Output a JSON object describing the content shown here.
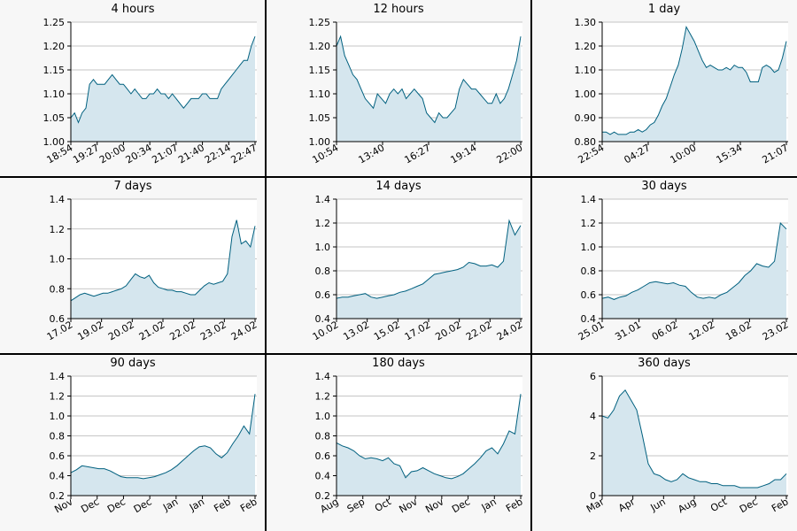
{
  "colors": {
    "line": "#00607f",
    "fill": "#d5e6ee",
    "grid": "#b3b3b3",
    "background": "#f7f7f7",
    "plot_bg": "#ffffff"
  },
  "chart_data": [
    {
      "type": "area",
      "title": "4 hours",
      "ylim": [
        1.0,
        1.25
      ],
      "yticks": [
        "1.00",
        "1.05",
        "1.10",
        "1.15",
        "1.20",
        "1.25"
      ],
      "xticks": [
        "18:54",
        "19:27",
        "20:00",
        "20:34",
        "21:07",
        "21:40",
        "22:14",
        "22:47"
      ],
      "y": [
        1.05,
        1.06,
        1.04,
        1.06,
        1.07,
        1.12,
        1.13,
        1.12,
        1.12,
        1.12,
        1.13,
        1.14,
        1.13,
        1.12,
        1.12,
        1.11,
        1.1,
        1.11,
        1.1,
        1.09,
        1.09,
        1.1,
        1.1,
        1.11,
        1.1,
        1.1,
        1.09,
        1.1,
        1.09,
        1.08,
        1.07,
        1.08,
        1.09,
        1.09,
        1.09,
        1.1,
        1.1,
        1.09,
        1.09,
        1.09,
        1.11,
        1.12,
        1.13,
        1.14,
        1.15,
        1.16,
        1.17,
        1.17,
        1.2,
        1.22
      ]
    },
    {
      "type": "area",
      "title": "12 hours",
      "ylim": [
        1.0,
        1.25
      ],
      "yticks": [
        "1.00",
        "1.05",
        "1.10",
        "1.15",
        "1.20",
        "1.25"
      ],
      "xticks": [
        "10:54",
        "13:40",
        "16:27",
        "19:14",
        "22:00"
      ],
      "y": [
        1.2,
        1.22,
        1.18,
        1.16,
        1.14,
        1.13,
        1.11,
        1.09,
        1.08,
        1.07,
        1.1,
        1.09,
        1.08,
        1.1,
        1.11,
        1.1,
        1.11,
        1.09,
        1.1,
        1.11,
        1.1,
        1.09,
        1.06,
        1.05,
        1.04,
        1.06,
        1.05,
        1.05,
        1.06,
        1.07,
        1.11,
        1.13,
        1.12,
        1.11,
        1.11,
        1.1,
        1.09,
        1.08,
        1.08,
        1.1,
        1.08,
        1.09,
        1.11,
        1.14,
        1.17,
        1.22
      ]
    },
    {
      "type": "area",
      "title": "1 day",
      "ylim": [
        0.8,
        1.3
      ],
      "yticks": [
        "0.80",
        "0.90",
        "1.00",
        "1.10",
        "1.20",
        "1.30"
      ],
      "xticks": [
        "22:54",
        "04:27",
        "10:00",
        "15:34",
        "21:07"
      ],
      "y": [
        0.84,
        0.84,
        0.83,
        0.84,
        0.83,
        0.83,
        0.83,
        0.84,
        0.84,
        0.85,
        0.84,
        0.85,
        0.87,
        0.88,
        0.91,
        0.95,
        0.98,
        1.03,
        1.08,
        1.12,
        1.19,
        1.28,
        1.25,
        1.22,
        1.18,
        1.14,
        1.11,
        1.12,
        1.11,
        1.1,
        1.1,
        1.11,
        1.1,
        1.12,
        1.11,
        1.11,
        1.09,
        1.05,
        1.05,
        1.05,
        1.11,
        1.12,
        1.11,
        1.09,
        1.1,
        1.15,
        1.22
      ]
    },
    {
      "type": "area",
      "title": "7 days",
      "ylim": [
        0.6,
        1.4
      ],
      "yticks": [
        "0.6",
        "0.8",
        "1.0",
        "1.2",
        "1.4"
      ],
      "xticks": [
        "17.02",
        "19.02",
        "20.02",
        "21.02",
        "22.02",
        "23.02",
        "24.02"
      ],
      "y": [
        0.72,
        0.74,
        0.76,
        0.77,
        0.76,
        0.75,
        0.76,
        0.77,
        0.77,
        0.78,
        0.79,
        0.8,
        0.82,
        0.86,
        0.9,
        0.88,
        0.87,
        0.89,
        0.84,
        0.81,
        0.8,
        0.79,
        0.79,
        0.78,
        0.78,
        0.77,
        0.76,
        0.76,
        0.79,
        0.82,
        0.84,
        0.83,
        0.84,
        0.85,
        0.9,
        1.15,
        1.26,
        1.1,
        1.12,
        1.08,
        1.22
      ]
    },
    {
      "type": "area",
      "title": "14 days",
      "ylim": [
        0.4,
        1.4
      ],
      "yticks": [
        "0.4",
        "0.6",
        "0.8",
        "1.0",
        "1.2",
        "1.4"
      ],
      "xticks": [
        "10.02",
        "13.02",
        "15.02",
        "17.02",
        "20.02",
        "22.02",
        "24.02"
      ],
      "y": [
        0.57,
        0.58,
        0.58,
        0.59,
        0.6,
        0.61,
        0.58,
        0.57,
        0.58,
        0.59,
        0.6,
        0.62,
        0.63,
        0.65,
        0.67,
        0.69,
        0.73,
        0.77,
        0.78,
        0.79,
        0.8,
        0.81,
        0.83,
        0.87,
        0.86,
        0.84,
        0.84,
        0.85,
        0.83,
        0.88,
        1.22,
        1.1,
        1.18
      ]
    },
    {
      "type": "area",
      "title": "30 days",
      "ylim": [
        0.4,
        1.4
      ],
      "yticks": [
        "0.4",
        "0.6",
        "0.8",
        "1.0",
        "1.2",
        "1.4"
      ],
      "xticks": [
        "25.01",
        "31.01",
        "06.02",
        "12.02",
        "18.02",
        "23.02"
      ],
      "y": [
        0.57,
        0.58,
        0.56,
        0.58,
        0.59,
        0.62,
        0.64,
        0.67,
        0.7,
        0.71,
        0.7,
        0.69,
        0.7,
        0.68,
        0.67,
        0.62,
        0.58,
        0.57,
        0.58,
        0.57,
        0.6,
        0.62,
        0.66,
        0.7,
        0.76,
        0.8,
        0.86,
        0.84,
        0.83,
        0.88,
        1.2,
        1.15
      ]
    },
    {
      "type": "area",
      "title": "90 days",
      "ylim": [
        0.2,
        1.4
      ],
      "yticks": [
        "0.2",
        "0.4",
        "0.6",
        "0.8",
        "1.0",
        "1.2",
        "1.4"
      ],
      "xticks": [
        "Nov",
        "Dec",
        "Dec",
        "Dec",
        "Jan",
        "Jan",
        "Feb",
        "Feb"
      ],
      "y": [
        0.43,
        0.46,
        0.5,
        0.49,
        0.48,
        0.47,
        0.47,
        0.45,
        0.42,
        0.39,
        0.38,
        0.38,
        0.38,
        0.37,
        0.38,
        0.39,
        0.41,
        0.43,
        0.46,
        0.5,
        0.55,
        0.6,
        0.65,
        0.69,
        0.7,
        0.68,
        0.62,
        0.58,
        0.63,
        0.72,
        0.8,
        0.9,
        0.82,
        1.22
      ]
    },
    {
      "type": "area",
      "title": "180 days",
      "ylim": [
        0.2,
        1.4
      ],
      "yticks": [
        "0.2",
        "0.4",
        "0.6",
        "0.8",
        "1.0",
        "1.2",
        "1.4"
      ],
      "xticks": [
        "Aug",
        "Sep",
        "Oct",
        "Nov",
        "Nov",
        "Dec",
        "Jan",
        "Feb"
      ],
      "y": [
        0.73,
        0.7,
        0.68,
        0.65,
        0.6,
        0.57,
        0.58,
        0.57,
        0.55,
        0.58,
        0.52,
        0.5,
        0.38,
        0.44,
        0.45,
        0.48,
        0.45,
        0.42,
        0.4,
        0.38,
        0.37,
        0.39,
        0.42,
        0.47,
        0.52,
        0.58,
        0.65,
        0.68,
        0.62,
        0.72,
        0.85,
        0.82,
        1.22
      ]
    },
    {
      "type": "area",
      "title": "360 days",
      "ylim": [
        0,
        6
      ],
      "yticks": [
        "0",
        "2",
        "4",
        "6"
      ],
      "xticks": [
        "Mar",
        "Apr",
        "Jun",
        "Aug",
        "Oct",
        "Dec",
        "Feb"
      ],
      "y": [
        4.0,
        3.9,
        4.3,
        5.0,
        5.3,
        4.8,
        4.3,
        3.0,
        1.6,
        1.1,
        1.0,
        0.8,
        0.7,
        0.8,
        1.1,
        0.9,
        0.8,
        0.7,
        0.7,
        0.6,
        0.6,
        0.5,
        0.5,
        0.5,
        0.4,
        0.4,
        0.4,
        0.4,
        0.5,
        0.6,
        0.8,
        0.8,
        1.1
      ]
    }
  ]
}
